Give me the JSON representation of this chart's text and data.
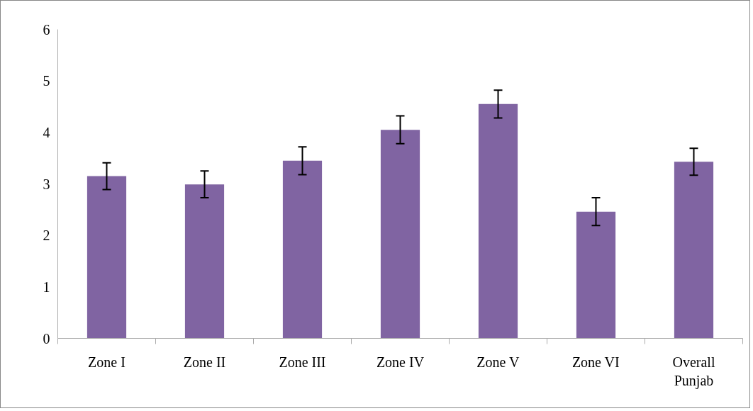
{
  "chart_data": {
    "type": "bar",
    "categories": [
      "Zone I",
      "Zone II",
      "Zone III",
      "Zone IV",
      "Zone V",
      "Zone VI",
      "Overall Punjab"
    ],
    "values": [
      3.15,
      2.99,
      3.45,
      4.05,
      4.55,
      2.46,
      3.43
    ],
    "errors": [
      0.26,
      0.26,
      0.27,
      0.27,
      0.27,
      0.27,
      0.26
    ],
    "color": "#8064a2",
    "ylim": [
      0,
      6
    ],
    "yticks": [
      0,
      1,
      2,
      3,
      4,
      5,
      6
    ],
    "grid": false
  }
}
